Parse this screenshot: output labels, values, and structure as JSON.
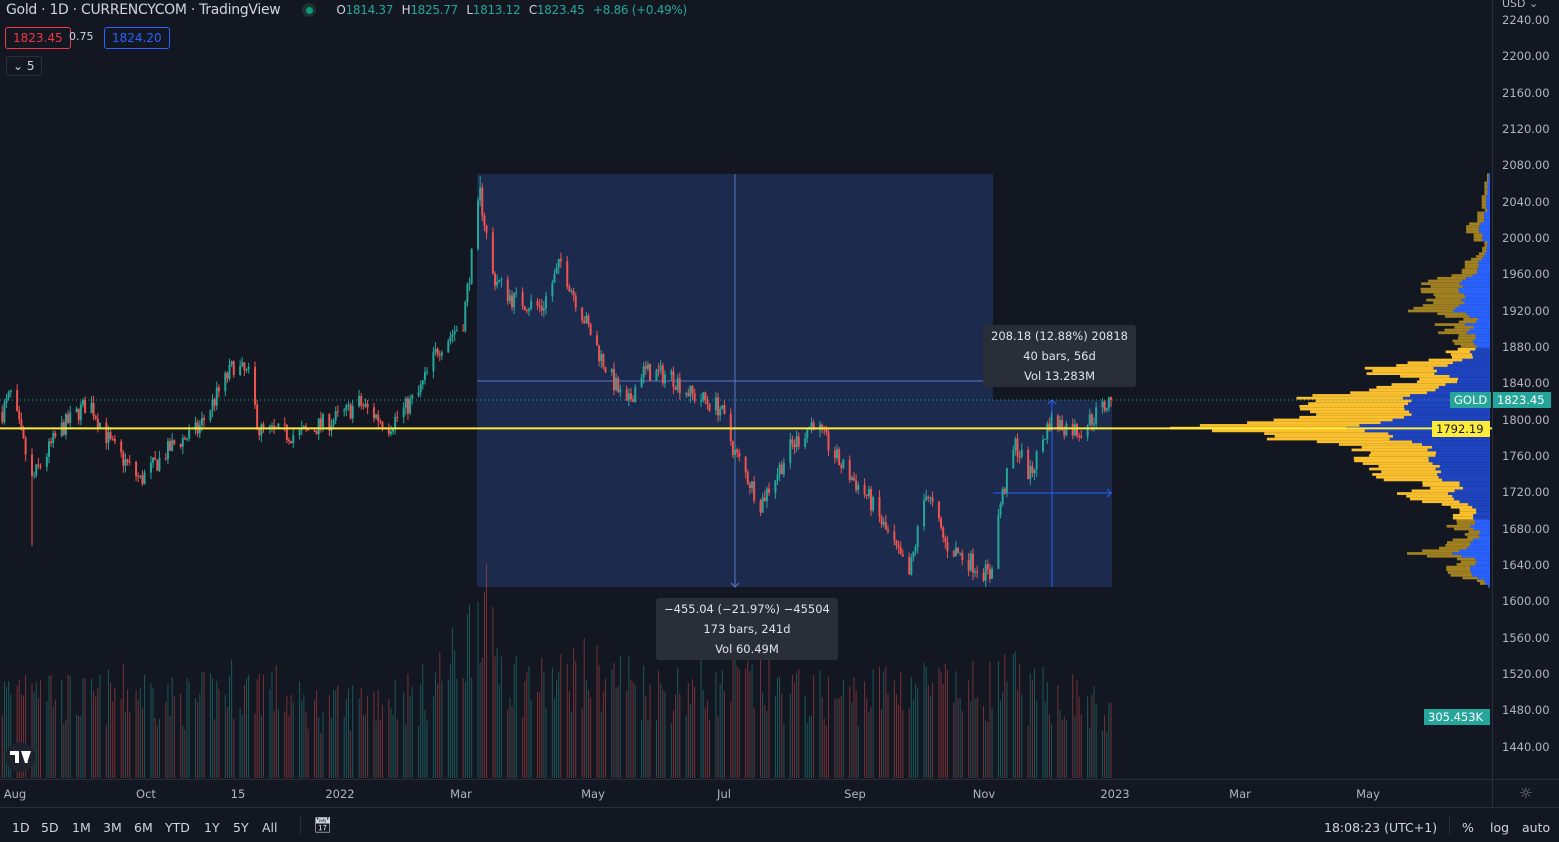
{
  "header": {
    "title": "Gold · 1D · CURRENCYCOM · TradingView",
    "o_label": "O",
    "o": "1814.37",
    "h_label": "H",
    "h": "1825.77",
    "l_label": "L",
    "l": "1813.12",
    "c_label": "C",
    "c": "1823.45",
    "change": "+8.86 (+0.49%)"
  },
  "quote": {
    "sell": "1823.45",
    "spread": "0.75",
    "buy": "1824.20"
  },
  "indicators_toggle": "5",
  "price_axis": {
    "currency": "USD",
    "ticks": [
      "2240.00",
      "2200.00",
      "2160.00",
      "2120.00",
      "2080.00",
      "2040.00",
      "2000.00",
      "1960.00",
      "1920.00",
      "1880.00",
      "1840.00",
      "1800.00",
      "1760.00",
      "1720.00",
      "1680.00",
      "1640.00",
      "1600.00",
      "1560.00",
      "1520.00",
      "1480.00",
      "1440.00"
    ],
    "symbol_tag": "GOLD",
    "last_price": "1823.45",
    "poc_price": "1792.19",
    "volume_tag": "305.453K"
  },
  "time_axis": {
    "ticks": [
      "Aug",
      "Oct",
      "15",
      "2022",
      "Mar",
      "May",
      "Jul",
      "Sep",
      "Nov",
      "2023",
      "Mar",
      "May"
    ]
  },
  "measure_1": {
    "line1": "−455.04 (−21.97%) −45504",
    "line2": "173 bars, 241d",
    "line3": "Vol 60.49M"
  },
  "measure_2": {
    "line1": "208.18 (12.88%) 20818",
    "line2": "40 bars, 56d",
    "line3": "Vol 13.283M"
  },
  "bottom_bar": {
    "ranges": [
      "1D",
      "5D",
      "1M",
      "3M",
      "6M",
      "YTD",
      "1Y",
      "5Y",
      "All"
    ],
    "clock": "18:08:23 (UTC+1)",
    "percent": "%",
    "log": "log",
    "auto": "auto"
  },
  "colors": {
    "background": "#131722",
    "up": "#26a69a",
    "down": "#ef5350",
    "poc": "#ffeb3b",
    "measure_fill": "#1c2b4d",
    "profile_blue": "#2962ff",
    "profile_yellow": "#fbc02d"
  },
  "chart_data": {
    "type": "candlestick",
    "symbol": "Gold",
    "interval": "1D",
    "ylim": [
      1420,
      2250
    ],
    "xrange": [
      "2021-07-26",
      "2023-06-30"
    ],
    "grid": false,
    "anchors": [
      {
        "d": "2021-07-26",
        "c": 1810,
        "v": 420
      },
      {
        "d": "2021-07-30",
        "c": 1830,
        "v": 450
      },
      {
        "d": "2021-08-06",
        "c": 1765,
        "v": 520
      },
      {
        "d": "2021-08-09",
        "c": 1735,
        "v": 600,
        "l": 1663
      },
      {
        "d": "2021-08-22",
        "c": 1790,
        "v": 420
      },
      {
        "d": "2021-09-05",
        "c": 1822,
        "v": 400
      },
      {
        "d": "2021-09-15",
        "c": 1775,
        "v": 430
      },
      {
        "d": "2021-09-29",
        "c": 1735,
        "v": 460
      },
      {
        "d": "2021-10-15",
        "c": 1775,
        "v": 400
      },
      {
        "d": "2021-10-26",
        "c": 1790,
        "v": 400
      },
      {
        "d": "2021-11-12",
        "c": 1862,
        "v": 480
      },
      {
        "d": "2021-11-19",
        "c": 1850,
        "v": 450
      },
      {
        "d": "2021-11-24",
        "c": 1790,
        "v": 500
      },
      {
        "d": "2021-12-12",
        "c": 1785,
        "v": 380
      },
      {
        "d": "2022-01-01",
        "c": 1805,
        "v": 360
      },
      {
        "d": "2022-01-10",
        "c": 1820,
        "v": 400
      },
      {
        "d": "2022-01-24",
        "c": 1795,
        "v": 430
      },
      {
        "d": "2022-02-07",
        "c": 1830,
        "v": 420
      },
      {
        "d": "2022-02-16",
        "c": 1880,
        "v": 520
      },
      {
        "d": "2022-02-28",
        "c": 1910,
        "v": 650
      },
      {
        "d": "2022-03-08",
        "c": 2050,
        "v": 950,
        "h": 2070
      },
      {
        "d": "2022-03-14",
        "c": 1960,
        "v": 700
      },
      {
        "d": "2022-03-23",
        "c": 1935,
        "v": 520
      },
      {
        "d": "2022-04-06",
        "c": 1925,
        "v": 480
      },
      {
        "d": "2022-04-15",
        "c": 1975,
        "v": 500
      },
      {
        "d": "2022-04-22",
        "c": 1935,
        "v": 560
      },
      {
        "d": "2022-05-04",
        "c": 1870,
        "v": 520
      },
      {
        "d": "2022-05-16",
        "c": 1815,
        "v": 520
      },
      {
        "d": "2022-05-23",
        "c": 1855,
        "v": 470
      },
      {
        "d": "2022-06-06",
        "c": 1850,
        "v": 450
      },
      {
        "d": "2022-06-15",
        "c": 1830,
        "v": 480
      },
      {
        "d": "2022-06-29",
        "c": 1815,
        "v": 440
      },
      {
        "d": "2022-07-06",
        "c": 1765,
        "v": 500
      },
      {
        "d": "2022-07-18",
        "c": 1710,
        "v": 480
      },
      {
        "d": "2022-08-01",
        "c": 1770,
        "v": 440
      },
      {
        "d": "2022-08-12",
        "c": 1800,
        "v": 420
      },
      {
        "d": "2022-08-24",
        "c": 1755,
        "v": 420
      },
      {
        "d": "2022-09-07",
        "c": 1715,
        "v": 440
      },
      {
        "d": "2022-09-16",
        "c": 1675,
        "v": 470
      },
      {
        "d": "2022-09-26",
        "c": 1630,
        "v": 500
      },
      {
        "d": "2022-10-04",
        "c": 1725,
        "v": 480
      },
      {
        "d": "2022-10-13",
        "c": 1665,
        "v": 450
      },
      {
        "d": "2022-10-22",
        "c": 1650,
        "v": 440
      },
      {
        "d": "2022-11-03",
        "c": 1630,
        "v": 470
      },
      {
        "d": "2022-11-08",
        "c": 1710,
        "v": 480
      },
      {
        "d": "2022-11-15",
        "c": 1775,
        "v": 500
      },
      {
        "d": "2022-11-22",
        "c": 1740,
        "v": 420
      },
      {
        "d": "2022-12-01",
        "c": 1800,
        "v": 440
      },
      {
        "d": "2022-12-15",
        "c": 1790,
        "v": 410
      },
      {
        "d": "2022-12-30",
        "c": 1823.45,
        "v": 305.453
      }
    ],
    "volume_unit": "K",
    "horizontal_line": 1792.19,
    "last_price": 1823.45
  }
}
